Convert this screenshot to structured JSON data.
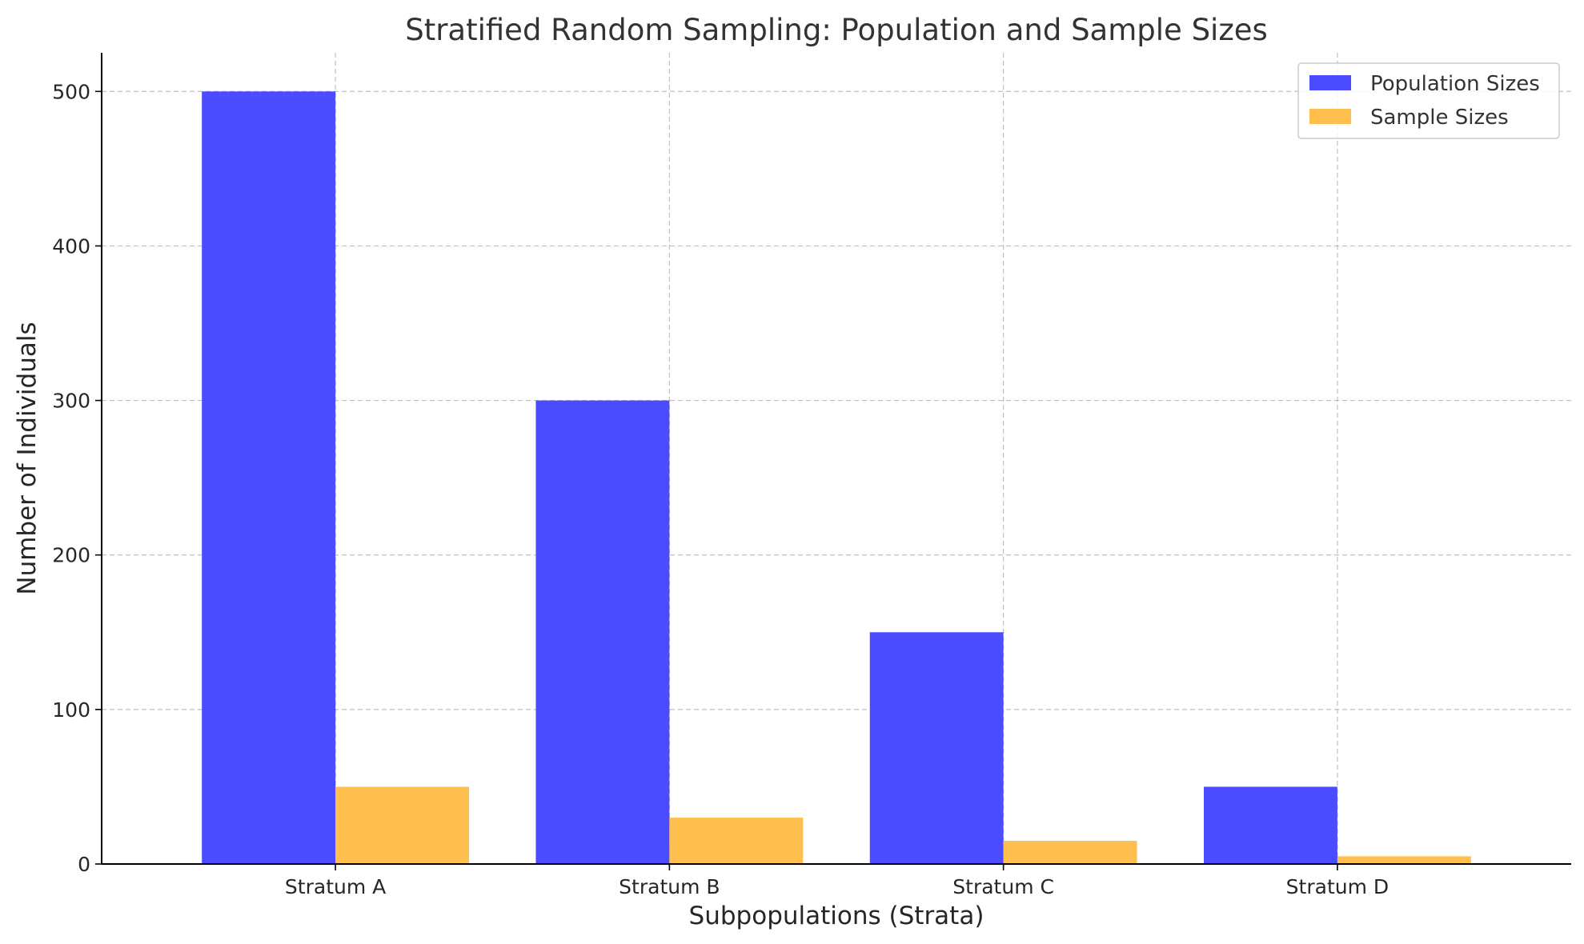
{
  "chart_data": {
    "type": "bar",
    "title": "Stratified Random Sampling: Population and Sample Sizes",
    "xlabel": "Subpopulations (Strata)",
    "ylabel": "Number of Individuals",
    "categories": [
      "Stratum A",
      "Stratum B",
      "Stratum C",
      "Stratum D"
    ],
    "series": [
      {
        "name": "Population Sizes",
        "values": [
          500,
          300,
          150,
          50
        ],
        "color": "#4b4bff"
      },
      {
        "name": "Sample Sizes",
        "values": [
          50,
          30,
          15,
          5
        ],
        "color": "#ffbf4f"
      }
    ],
    "ylim": [
      0,
      525
    ],
    "yticks": [
      0,
      100,
      200,
      300,
      400,
      500
    ],
    "grid": true,
    "legend_position": "top-right"
  }
}
